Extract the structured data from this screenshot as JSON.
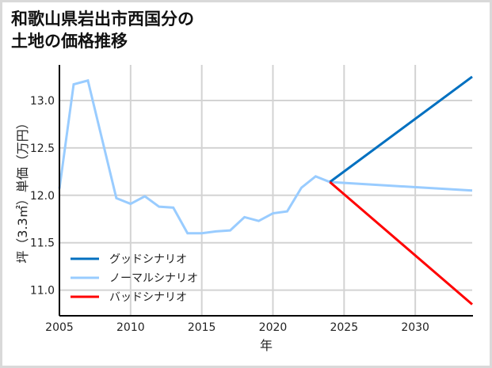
{
  "title": {
    "line1": "和歌山県岩出市西国分の",
    "line2": "土地の価格推移"
  },
  "chart_data": {
    "type": "line",
    "title": "和歌山県岩出市西国分の土地の価格推移",
    "xlabel": "年",
    "ylabel": "坪（3.3㎡）単価（万円）",
    "xlim": [
      2005,
      2034
    ],
    "ylim": [
      10.73,
      13.375
    ],
    "x_ticks": [
      2005,
      2010,
      2015,
      2020,
      2025,
      2030
    ],
    "y_ticks": [
      11.0,
      11.5,
      12.0,
      12.5,
      13.0
    ],
    "y_tick_labels": [
      "11.0",
      "11.5",
      "12.0",
      "12.5",
      "13.0"
    ],
    "grid": true,
    "legend_position": "lower left",
    "series": [
      {
        "name": "グッドシナリオ",
        "color": "#0070c0",
        "x": [
          2024,
          2034
        ],
        "values": [
          12.14,
          13.25
        ]
      },
      {
        "name": "ノーマルシナリオ",
        "color": "#99ccff",
        "x": [
          2005,
          2006,
          2007,
          2009,
          2010,
          2011,
          2012,
          2013,
          2014,
          2015,
          2016,
          2017,
          2018,
          2019,
          2020,
          2021,
          2022,
          2023,
          2024,
          2034
        ],
        "values": [
          12.07,
          13.17,
          13.21,
          11.97,
          11.91,
          11.99,
          11.88,
          11.87,
          11.6,
          11.6,
          11.62,
          11.63,
          11.77,
          11.73,
          11.81,
          11.83,
          12.08,
          12.2,
          12.14,
          12.05
        ]
      },
      {
        "name": "バッドシナリオ",
        "color": "#ff0000",
        "x": [
          2024,
          2034
        ],
        "values": [
          12.14,
          10.85
        ]
      }
    ]
  },
  "colors": {
    "grid": "#d3d3d3",
    "axis": "#000000",
    "frame": "#d9d9d9"
  }
}
